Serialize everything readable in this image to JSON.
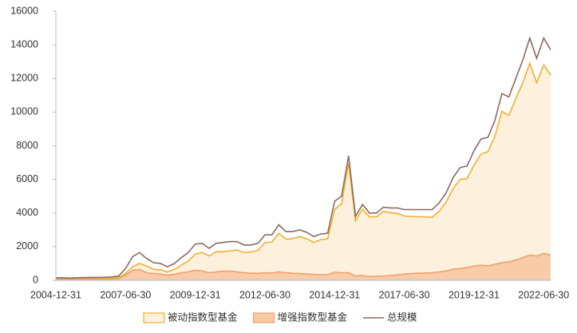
{
  "chart_data": {
    "type": "area",
    "categories": [
      "2004-12-31",
      null,
      null,
      null,
      null,
      null,
      null,
      null,
      null,
      null,
      "2007-06-30",
      null,
      null,
      null,
      null,
      null,
      null,
      null,
      null,
      null,
      "2009-12-31",
      null,
      null,
      null,
      null,
      null,
      null,
      null,
      null,
      null,
      "2012-06-30",
      null,
      null,
      null,
      null,
      null,
      null,
      null,
      null,
      null,
      "2014-12-31",
      null,
      null,
      null,
      null,
      null,
      null,
      null,
      null,
      null,
      "2017-06-30",
      null,
      null,
      null,
      null,
      null,
      null,
      null,
      null,
      null,
      "2019-12-31",
      null,
      null,
      null,
      null,
      null,
      null,
      null,
      null,
      null,
      "2022-06-30",
      null
    ],
    "series": [
      {
        "name": "被动指数型基金",
        "color": "#f0b030",
        "fill": "#fdf0dc",
        "values": [
          100,
          100,
          90,
          100,
          110,
          110,
          110,
          120,
          130,
          160,
          400,
          800,
          1000,
          850,
          650,
          620,
          500,
          650,
          900,
          1150,
          1550,
          1650,
          1450,
          1700,
          1700,
          1750,
          1800,
          1650,
          1680,
          1780,
          2250,
          2270,
          2800,
          2450,
          2480,
          2600,
          2470,
          2250,
          2420,
          2470,
          4220,
          4550,
          6950,
          3550,
          4220,
          3770,
          3770,
          4100,
          4020,
          3980,
          3820,
          3800,
          3780,
          3770,
          3750,
          4100,
          4650,
          5450,
          6000,
          6050,
          6850,
          7500,
          7650,
          8550,
          10050,
          9800,
          10800,
          11750,
          12900,
          11750,
          12800,
          12200
        ]
      },
      {
        "name": "增强指数型基金",
        "color": "#f0a070",
        "fill": "#f9c9a5",
        "values": [
          50,
          50,
          40,
          50,
          50,
          60,
          60,
          60,
          70,
          90,
          300,
          600,
          650,
          450,
          400,
          380,
          300,
          350,
          450,
          500,
          600,
          550,
          450,
          500,
          550,
          550,
          500,
          450,
          420,
          420,
          450,
          430,
          500,
          450,
          420,
          400,
          380,
          350,
          330,
          330,
          480,
          450,
          450,
          250,
          280,
          230,
          230,
          250,
          280,
          320,
          380,
          400,
          420,
          430,
          450,
          500,
          550,
          650,
          700,
          750,
          850,
          900,
          850,
          950,
          1050,
          1100,
          1200,
          1350,
          1500,
          1450,
          1600,
          1500
        ]
      },
      {
        "name": "总规模",
        "color": "#8c6a60",
        "values": [
          150,
          150,
          130,
          150,
          160,
          170,
          170,
          180,
          200,
          250,
          700,
          1400,
          1650,
          1300,
          1050,
          1000,
          800,
          1000,
          1350,
          1650,
          2150,
          2200,
          1900,
          2200,
          2250,
          2300,
          2300,
          2100,
          2100,
          2200,
          2700,
          2700,
          3300,
          2900,
          2900,
          3000,
          2850,
          2600,
          2750,
          2800,
          4700,
          5000,
          7400,
          3800,
          4500,
          4000,
          4000,
          4350,
          4300,
          4300,
          4200,
          4200,
          4200,
          4200,
          4200,
          4600,
          5200,
          6100,
          6700,
          6800,
          7700,
          8400,
          8500,
          9500,
          11100,
          10900,
          12000,
          13100,
          14400,
          13200,
          14400,
          13700
        ]
      }
    ],
    "ylim": [
      0,
      16000
    ],
    "yticks": [
      0,
      2000,
      4000,
      6000,
      8000,
      10000,
      12000,
      14000,
      16000
    ],
    "legend": "bottom"
  }
}
